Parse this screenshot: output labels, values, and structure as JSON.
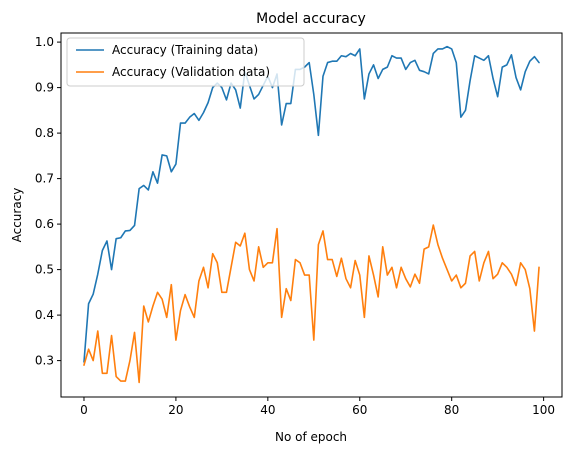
{
  "chart_data": {
    "type": "line",
    "title": "Model accuracy",
    "xlabel": "No of epoch",
    "ylabel": "Accuracy",
    "xlim": [
      -5,
      104
    ],
    "ylim": [
      0.22,
      1.02
    ],
    "xticks": [
      0,
      20,
      40,
      60,
      80,
      100
    ],
    "yticks": [
      0.3,
      0.4,
      0.5,
      0.6,
      0.7,
      0.8,
      0.9,
      1.0
    ],
    "ytick_labels": [
      "0.3",
      "0.4",
      "0.5",
      "0.6",
      "0.7",
      "0.8",
      "0.9",
      "1.0"
    ],
    "grid": false,
    "legend_position": "top-left",
    "series": [
      {
        "name": "Accuracy (Training data)",
        "color": "#1f77b4",
        "values": [
          0.297,
          0.425,
          0.446,
          0.49,
          0.542,
          0.563,
          0.5,
          0.568,
          0.57,
          0.585,
          0.586,
          0.597,
          0.678,
          0.685,
          0.675,
          0.715,
          0.69,
          0.752,
          0.75,
          0.715,
          0.732,
          0.822,
          0.822,
          0.835,
          0.843,
          0.828,
          0.845,
          0.867,
          0.9,
          0.91,
          0.9,
          0.873,
          0.91,
          0.895,
          0.855,
          0.935,
          0.905,
          0.875,
          0.885,
          0.905,
          0.925,
          0.9,
          0.93,
          0.818,
          0.865,
          0.865,
          0.94,
          0.94,
          0.945,
          0.955,
          0.885,
          0.795,
          0.925,
          0.955,
          0.958,
          0.958,
          0.97,
          0.968,
          0.975,
          0.97,
          0.985,
          0.875,
          0.93,
          0.95,
          0.92,
          0.94,
          0.945,
          0.97,
          0.965,
          0.965,
          0.94,
          0.955,
          0.96,
          0.938,
          0.935,
          0.93,
          0.975,
          0.985,
          0.985,
          0.99,
          0.985,
          0.955,
          0.835,
          0.85,
          0.915,
          0.97,
          0.965,
          0.96,
          0.97,
          0.92,
          0.88,
          0.945,
          0.95,
          0.972,
          0.922,
          0.895,
          0.935,
          0.958,
          0.968,
          0.955
        ]
      },
      {
        "name": "Accuracy (Validation data)",
        "color": "#ff7f0e",
        "values": [
          0.29,
          0.325,
          0.3,
          0.365,
          0.272,
          0.272,
          0.355,
          0.265,
          0.255,
          0.255,
          0.3,
          0.362,
          0.252,
          0.42,
          0.385,
          0.42,
          0.45,
          0.435,
          0.395,
          0.467,
          0.345,
          0.41,
          0.445,
          0.418,
          0.395,
          0.475,
          0.505,
          0.46,
          0.535,
          0.515,
          0.45,
          0.45,
          0.505,
          0.56,
          0.552,
          0.58,
          0.5,
          0.475,
          0.55,
          0.505,
          0.515,
          0.515,
          0.59,
          0.395,
          0.458,
          0.432,
          0.522,
          0.515,
          0.488,
          0.488,
          0.345,
          0.555,
          0.585,
          0.522,
          0.522,
          0.485,
          0.525,
          0.48,
          0.46,
          0.52,
          0.488,
          0.395,
          0.53,
          0.488,
          0.44,
          0.55,
          0.488,
          0.505,
          0.46,
          0.505,
          0.48,
          0.462,
          0.49,
          0.47,
          0.545,
          0.55,
          0.598,
          0.555,
          0.525,
          0.5,
          0.475,
          0.488,
          0.46,
          0.47,
          0.53,
          0.54,
          0.475,
          0.515,
          0.54,
          0.48,
          0.49,
          0.515,
          0.505,
          0.49,
          0.465,
          0.515,
          0.5,
          0.458,
          0.365,
          0.505
        ]
      }
    ]
  }
}
